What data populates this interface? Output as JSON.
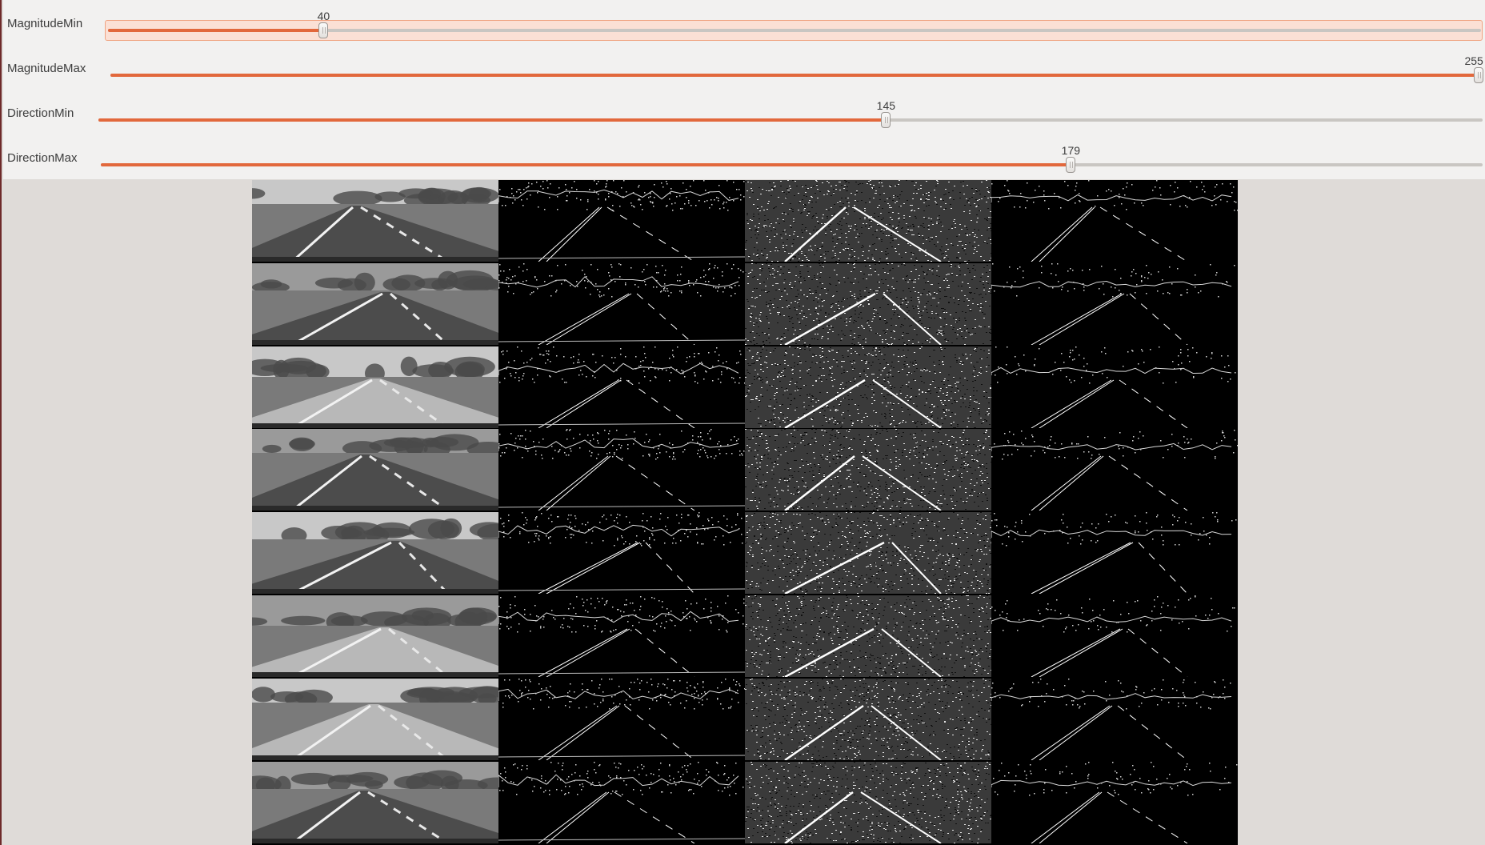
{
  "sliders": [
    {
      "label": "MagnitudeMin",
      "value": "40",
      "fraction": 0.157,
      "active": true
    },
    {
      "label": "MagnitudeMax",
      "value": "255",
      "fraction": 1.0,
      "active": false
    },
    {
      "label": "DirectionMin",
      "value": "145",
      "fraction": 0.569,
      "active": false
    },
    {
      "label": "DirectionMax",
      "value": "179",
      "fraction": 0.702,
      "active": false
    }
  ],
  "image_grid": {
    "rows": 8,
    "columns": [
      {
        "name": "grayscale"
      },
      {
        "name": "magnitude-threshold"
      },
      {
        "name": "direction-threshold"
      },
      {
        "name": "combined-threshold"
      }
    ]
  },
  "colors": {
    "accent": "#e2683c",
    "track": "#c9c6c2",
    "panel": "#f2f1f0",
    "background": "#dfdbd8"
  }
}
